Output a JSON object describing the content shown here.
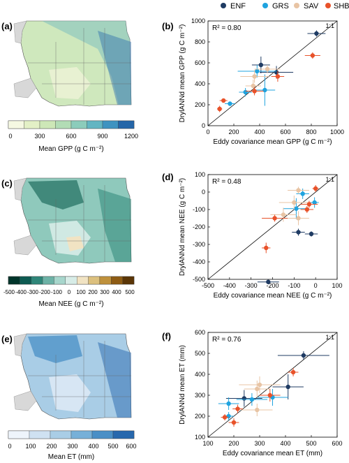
{
  "legend": [
    {
      "label": "ENF",
      "color": "#1f3b63"
    },
    {
      "label": "GRS",
      "color": "#1fa3df"
    },
    {
      "label": "SAV",
      "color": "#e8c4a4"
    },
    {
      "label": "SHB",
      "color": "#e8522a"
    }
  ],
  "maps": [
    {
      "panel_label": "(a)",
      "colorbar_label": "Mean GPP (g C m⁻²)",
      "colorbar_ticks": [
        "0",
        "300",
        "600",
        "900",
        "1200"
      ],
      "colorbar_colors": [
        "#f5f8e2",
        "#e3f0c6",
        "#cde7b7",
        "#b2dcb5",
        "#8cccbb",
        "#63b5c2",
        "#3f93c0",
        "#2566a8"
      ]
    },
    {
      "panel_label": "(c)",
      "colorbar_label": "Mean NEE (g C m⁻²)",
      "colorbar_ticks": [
        "-500",
        "-400",
        "-300",
        "-200",
        "-100",
        "0",
        "100",
        "200",
        "300",
        "400",
        "500"
      ],
      "colorbar_colors": [
        "#00352b",
        "#0d5b52",
        "#2f8679",
        "#6db2a6",
        "#a7d6cc",
        "#d7ece7",
        "#f1e3c3",
        "#dcc07e",
        "#bf913c",
        "#8e5c14",
        "#5b3607"
      ]
    },
    {
      "panel_label": "(e)",
      "colorbar_label": "Mean ET (mm)",
      "colorbar_ticks": [
        "0",
        "100",
        "200",
        "300",
        "400",
        "500",
        "600"
      ],
      "colorbar_colors": [
        "#eef4fb",
        "#cfe1f2",
        "#a9cde6",
        "#77b0d8",
        "#4a8fc6",
        "#2768ad"
      ]
    }
  ],
  "chart_data": [
    {
      "type": "scatter",
      "panel_label": "(b)",
      "xlabel": "Eddy covariance mean GPP (g C m⁻²)",
      "ylabel": "DrylANNd mean GPP (g C m⁻²)",
      "xlim": [
        0,
        1000
      ],
      "ylim": [
        0,
        1000
      ],
      "xticks": [
        "0",
        "200",
        "400",
        "600",
        "800",
        "1000"
      ],
      "yticks": [
        "0",
        "200",
        "400",
        "600",
        "800",
        "1000"
      ],
      "annotation": "R² = 0.80",
      "line_label": "1:1",
      "points": [
        {
          "series": "ENF",
          "x": 840,
          "y": 880,
          "xerr": 70,
          "yerr": 30
        },
        {
          "series": "ENF",
          "x": 410,
          "y": 580,
          "xerr": 70,
          "yerr": 80
        },
        {
          "series": "ENF",
          "x": 530,
          "y": 510,
          "xerr": 130,
          "yerr": 60
        },
        {
          "series": "GRS",
          "x": 380,
          "y": 520,
          "xerr": 150,
          "yerr": 60
        },
        {
          "series": "GRS",
          "x": 440,
          "y": 340,
          "xerr": 80,
          "yerr": 150
        },
        {
          "series": "GRS",
          "x": 290,
          "y": 320,
          "xerr": 50,
          "yerr": 40
        },
        {
          "series": "GRS",
          "x": 170,
          "y": 210,
          "xerr": 40,
          "yerr": 20
        },
        {
          "series": "SAV",
          "x": 460,
          "y": 540,
          "xerr": 100,
          "yerr": 40
        },
        {
          "series": "SAV",
          "x": 360,
          "y": 470,
          "xerr": 110,
          "yerr": 60
        },
        {
          "series": "SAV",
          "x": 350,
          "y": 380,
          "xerr": 60,
          "yerr": 60
        },
        {
          "series": "SHB",
          "x": 810,
          "y": 670,
          "xerr": 60,
          "yerr": 30
        },
        {
          "series": "SHB",
          "x": 540,
          "y": 470,
          "xerr": 50,
          "yerr": 50
        },
        {
          "series": "SHB",
          "x": 360,
          "y": 330,
          "xerr": 70,
          "yerr": 40
        },
        {
          "series": "SHB",
          "x": 120,
          "y": 240,
          "xerr": 30,
          "yerr": 20
        },
        {
          "series": "SHB",
          "x": 90,
          "y": 160,
          "xerr": 20,
          "yerr": 30
        }
      ]
    },
    {
      "type": "scatter",
      "panel_label": "(d)",
      "xlabel": "Eddy covariance mean NEE (g C m⁻²)",
      "ylabel": "DrylANNd mean NEE (g C m⁻²)",
      "xlim": [
        -500,
        100
      ],
      "ylim": [
        -500,
        100
      ],
      "xticks": [
        "-500",
        "-400",
        "-300",
        "-200",
        "-100",
        "0",
        "100"
      ],
      "yticks": [
        "-500",
        "-400",
        "-300",
        "-200",
        "-100",
        "0",
        "100"
      ],
      "annotation": "R² = 0.48",
      "line_label": "1:1",
      "points": [
        {
          "series": "ENF",
          "x": -220,
          "y": -515,
          "xerr": 50,
          "yerr": 10
        },
        {
          "series": "ENF",
          "x": -80,
          "y": -230,
          "xerr": 30,
          "yerr": 20
        },
        {
          "series": "ENF",
          "x": -20,
          "y": -240,
          "xerr": 30,
          "yerr": 15
        },
        {
          "series": "GRS",
          "x": -90,
          "y": -95,
          "xerr": 60,
          "yerr": 60
        },
        {
          "series": "GRS",
          "x": -60,
          "y": -10,
          "xerr": 30,
          "yerr": 30
        },
        {
          "series": "GRS",
          "x": -5,
          "y": -60,
          "xerr": 20,
          "yerr": 30
        },
        {
          "series": "SAV",
          "x": -80,
          "y": 10,
          "xerr": 50,
          "yerr": 20
        },
        {
          "series": "SAV",
          "x": -100,
          "y": -60,
          "xerr": 70,
          "yerr": 40
        },
        {
          "series": "SAV",
          "x": -80,
          "y": -150,
          "xerr": 50,
          "yerr": 40
        },
        {
          "series": "SAV",
          "x": -150,
          "y": -130,
          "xerr": 60,
          "yerr": 40
        },
        {
          "series": "SHB",
          "x": 0,
          "y": 20,
          "xerr": 15,
          "yerr": 20
        },
        {
          "series": "SHB",
          "x": -30,
          "y": -70,
          "xerr": 40,
          "yerr": 20
        },
        {
          "series": "SHB",
          "x": -40,
          "y": -100,
          "xerr": 30,
          "yerr": 20
        },
        {
          "series": "SHB",
          "x": -190,
          "y": -150,
          "xerr": 60,
          "yerr": 20
        },
        {
          "series": "SHB",
          "x": -230,
          "y": -320,
          "xerr": 20,
          "yerr": 30
        }
      ]
    },
    {
      "type": "scatter",
      "panel_label": "(f)",
      "xlabel": "Eddy covariance mean ET (mm)",
      "ylabel": "DrylANNd mean ET (mm)",
      "xlim": [
        100,
        600
      ],
      "ylim": [
        100,
        600
      ],
      "xticks": [
        "100",
        "200",
        "300",
        "400",
        "500",
        "600"
      ],
      "yticks": [
        "100",
        "200",
        "300",
        "400",
        "500",
        "600"
      ],
      "annotation": "R² = 0.76",
      "line_label": "1:1",
      "points": [
        {
          "series": "ENF",
          "x": 470,
          "y": 490,
          "xerr": 100,
          "yerr": 20
        },
        {
          "series": "ENF",
          "x": 410,
          "y": 340,
          "xerr": 60,
          "yerr": 60
        },
        {
          "series": "ENF",
          "x": 240,
          "y": 285,
          "xerr": 70,
          "yerr": 40
        },
        {
          "series": "GRS",
          "x": 350,
          "y": 290,
          "xerr": 60,
          "yerr": 40
        },
        {
          "series": "GRS",
          "x": 270,
          "y": 280,
          "xerr": 60,
          "yerr": 30
        },
        {
          "series": "GRS",
          "x": 180,
          "y": 260,
          "xerr": 40,
          "yerr": 30
        },
        {
          "series": "GRS",
          "x": 180,
          "y": 200,
          "xerr": 20,
          "yerr": 20
        },
        {
          "series": "SAV",
          "x": 300,
          "y": 350,
          "xerr": 80,
          "yerr": 40
        },
        {
          "series": "SAV",
          "x": 290,
          "y": 330,
          "xerr": 50,
          "yerr": 40
        },
        {
          "series": "SAV",
          "x": 290,
          "y": 230,
          "xerr": 60,
          "yerr": 30
        },
        {
          "series": "SHB",
          "x": 430,
          "y": 410,
          "xerr": 20,
          "yerr": 20
        },
        {
          "series": "SHB",
          "x": 340,
          "y": 300,
          "xerr": 40,
          "yerr": 30
        },
        {
          "series": "SHB",
          "x": 215,
          "y": 235,
          "xerr": 20,
          "yerr": 20
        },
        {
          "series": "SHB",
          "x": 200,
          "y": 170,
          "xerr": 20,
          "yerr": 20
        },
        {
          "series": "SHB",
          "x": 165,
          "y": 195,
          "xerr": 15,
          "yerr": 15
        }
      ]
    }
  ]
}
